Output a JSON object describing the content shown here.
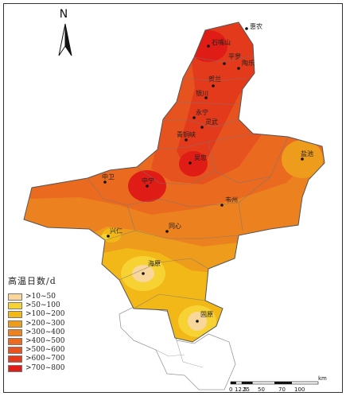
{
  "north": {
    "label": "N"
  },
  "legend": {
    "title": "高温日数/d",
    "items": [
      {
        "label": ">10~50",
        "color": "#f9d69a"
      },
      {
        "label": ">50~100",
        "color": "#f6d233"
      },
      {
        "label": ">100~200",
        "color": "#f2b817"
      },
      {
        "label": ">200~300",
        "color": "#ee9c1b"
      },
      {
        "label": ">300~400",
        "color": "#ec8120"
      },
      {
        "label": ">400~500",
        "color": "#ea6a20"
      },
      {
        "label": ">500~600",
        "color": "#e6531f"
      },
      {
        "label": ">600~700",
        "color": "#e33a1c"
      },
      {
        "label": ">700~800",
        "color": "#e01c16"
      }
    ]
  },
  "cities": [
    {
      "name": "惠农"
    },
    {
      "name": "石嘴山"
    },
    {
      "name": "平罗"
    },
    {
      "name": "陶乐"
    },
    {
      "name": "贺兰"
    },
    {
      "name": "银川"
    },
    {
      "name": "永宁"
    },
    {
      "name": "灵武"
    },
    {
      "name": "青铜峡"
    },
    {
      "name": "吴忠"
    },
    {
      "name": "盐池"
    },
    {
      "name": "中卫"
    },
    {
      "name": "中宁"
    },
    {
      "name": "韦州"
    },
    {
      "name": "同心"
    },
    {
      "name": "兴仁"
    },
    {
      "name": "海原"
    },
    {
      "name": "固原"
    }
  ],
  "scale_bar": {
    "ticks": [
      "0",
      "12.5",
      "25",
      "50",
      "70",
      "100"
    ],
    "unit": "km"
  }
}
